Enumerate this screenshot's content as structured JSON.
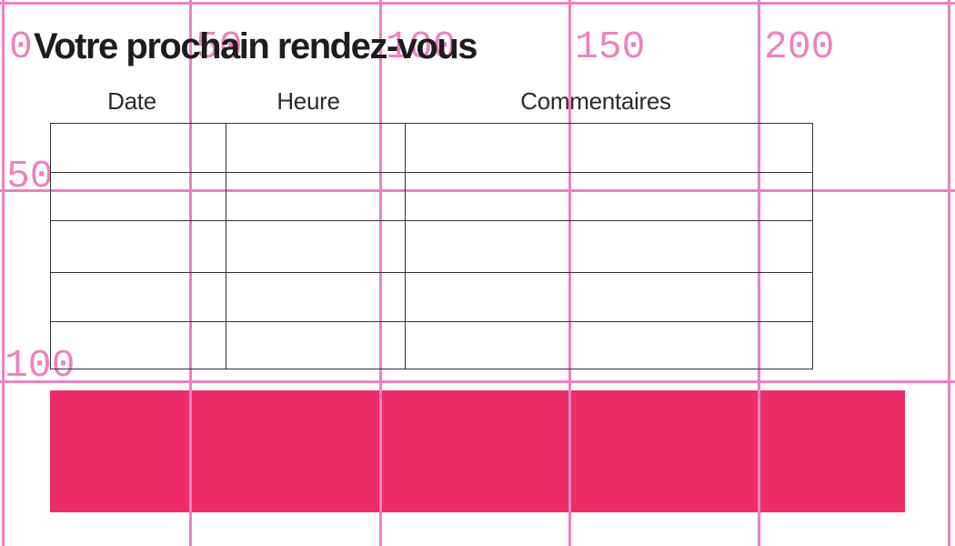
{
  "document": {
    "title": "Votre prochain rendez-vous",
    "table": {
      "headers": [
        "Date",
        "Heure",
        "Commentaires"
      ],
      "rows": [
        [
          "",
          "",
          ""
        ],
        [
          "",
          "",
          ""
        ],
        [
          "",
          "",
          ""
        ],
        [
          "",
          "",
          ""
        ],
        [
          "",
          "",
          ""
        ]
      ]
    },
    "highlight_bar": {
      "text": ""
    }
  },
  "ruler": {
    "x_labels": [
      "0",
      "50",
      "100",
      "150",
      "200"
    ],
    "y_labels": [
      "50",
      "100"
    ]
  },
  "colors": {
    "grid_pink": "#ec82c0",
    "bar_pink": "#ed2d67",
    "title_text": "#1e1c1e",
    "header_text": "#2b2b2b",
    "table_border": "#333333",
    "background": "#ffffff"
  }
}
